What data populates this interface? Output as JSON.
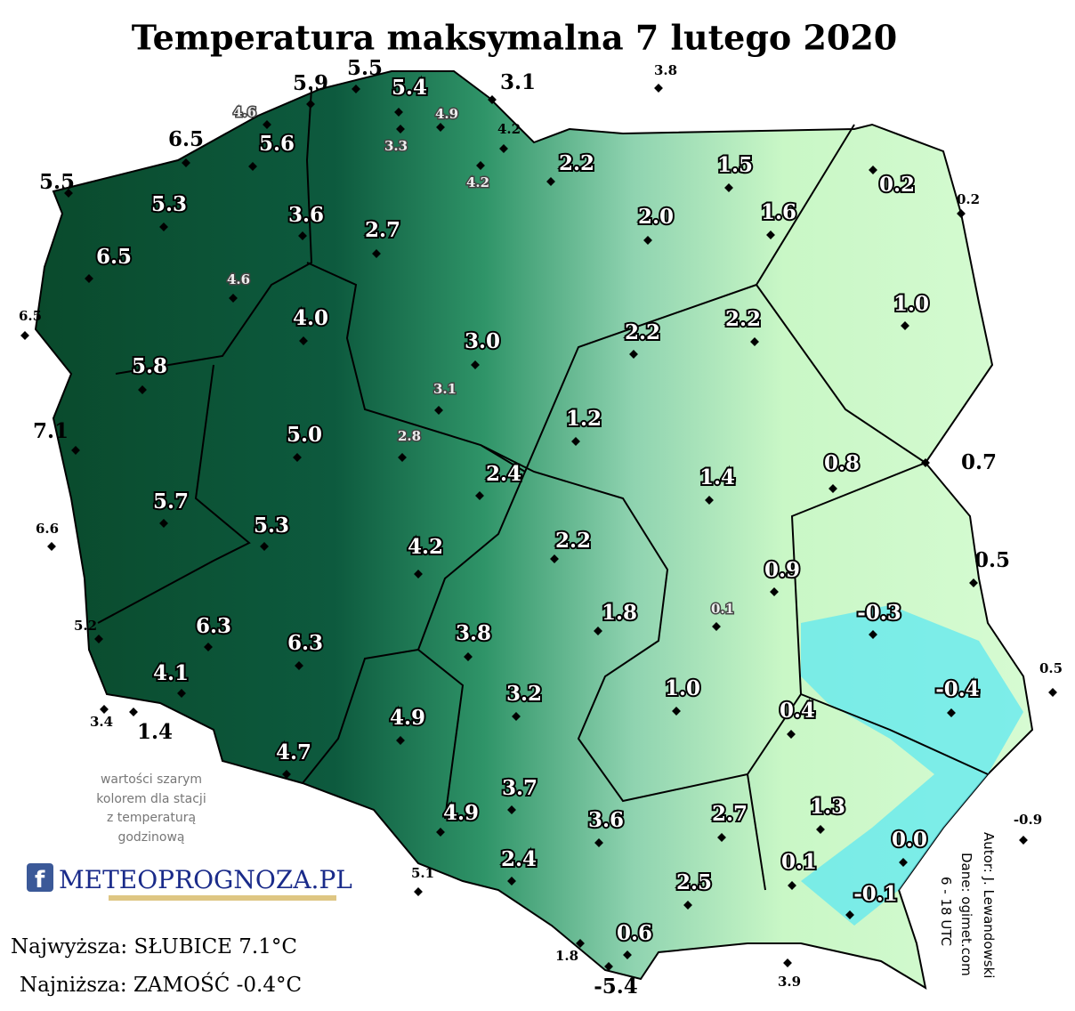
{
  "title": "Temperatura maksymalna 7 lutego 2020",
  "stations": [
    "5.9",
    "5.5",
    "5.4",
    "3.1",
    "3.8",
    "4.6",
    "4.9",
    "4.2",
    "6.5",
    "5.6",
    "3.3",
    "4.2",
    "2.2",
    "1.5",
    "0.2",
    "0.2",
    "5.5",
    "5.3",
    "3.6",
    "2.0",
    "1.6",
    "2.7",
    "6.5",
    "4.6",
    "6.5",
    "1.0",
    "4.0",
    "2.2",
    "2.2",
    "3.0",
    "5.8",
    "3.1",
    "7.1",
    "1.2",
    "5.0",
    "2.8",
    "0.7",
    "1.4",
    "0.8",
    "2.4",
    "5.7",
    "6.6",
    "5.3",
    "2.2",
    "4.2",
    "0.5",
    "0.9",
    "0.1",
    "1.8",
    "-0.3",
    "5.2",
    "6.3",
    "6.3",
    "3.8",
    "0.5",
    "4.1",
    "3.2",
    "1.0",
    "-0.4",
    "0.4",
    "3.4",
    "1.4",
    "4.9",
    "4.7",
    "3.7",
    "1.3",
    "-0.9",
    "4.9",
    "3.6",
    "2.7",
    "0.0",
    "2.4",
    "0.1",
    "5.1",
    "2.5",
    "-0.1",
    "0.6",
    "1.8",
    "3.9",
    "-5.4"
  ],
  "note": [
    "wartości szarym",
    "kolorem dla stacji",
    "z temperaturą",
    "godzinową"
  ],
  "logo": "METEOPROGNOZA.PL",
  "summary": [
    "Najwyższa: SŁUBICE 7.1°C",
    "Najniższa: ZAMOŚĆ -0.4°C"
  ],
  "credits": [
    "Autor: J. Lewandowski",
    "Dane: ogimet.com",
    "6 - 18 UTC"
  ]
}
